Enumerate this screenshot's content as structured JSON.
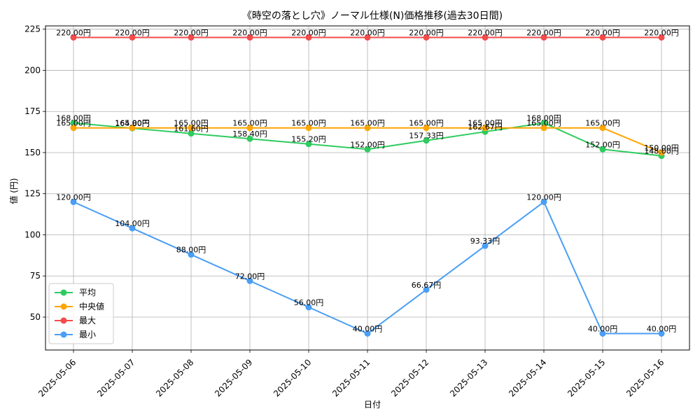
{
  "chart_data": {
    "type": "line",
    "title": "《時空の落とし穴》ノーマル仕様(N)価格推移(過去30日間)",
    "xlabel": "日付",
    "ylabel": "値 (円)",
    "categories": [
      "2025-05-06",
      "2025-05-07",
      "2025-05-08",
      "2025-05-09",
      "2025-05-10",
      "2025-05-11",
      "2025-05-12",
      "2025-05-13",
      "2025-05-14",
      "2025-05-15",
      "2025-05-16"
    ],
    "ylim": [
      30,
      227
    ],
    "yticks": [
      50,
      75,
      100,
      125,
      150,
      175,
      200,
      225
    ],
    "grid": true,
    "legend_position": "lower-left",
    "series": [
      {
        "name": "平均",
        "color": "#2ecc5f",
        "values": [
          168.0,
          164.8,
          161.6,
          158.4,
          155.2,
          152.0,
          157.33,
          162.67,
          168.0,
          152.0,
          148.0
        ],
        "labels": [
          "168.00円",
          "164.80円",
          "161.60円",
          "158.40円",
          "155.20円",
          "152.00円",
          "157.33円",
          "162.67円",
          "168.00円",
          "152.00円",
          "148.00円"
        ]
      },
      {
        "name": "中央値",
        "color": "#ffa500",
        "values": [
          165.0,
          165.0,
          165.0,
          165.0,
          165.0,
          165.0,
          165.0,
          165.0,
          165.0,
          165.0,
          150.0
        ],
        "labels": [
          "165.00円",
          "165.00円",
          "165.00円",
          "165.00円",
          "165.00円",
          "165.00円",
          "165.00円",
          "165.00円",
          "165.00円",
          "165.00円",
          "150.00円"
        ]
      },
      {
        "name": "最大",
        "color": "#f44b4b",
        "values": [
          220.0,
          220.0,
          220.0,
          220.0,
          220.0,
          220.0,
          220.0,
          220.0,
          220.0,
          220.0,
          220.0
        ],
        "labels": [
          "220.00円",
          "220.00円",
          "220.00円",
          "220.00円",
          "220.00円",
          "220.00円",
          "220.00円",
          "220.00円",
          "220.00円",
          "220.00円",
          "220.00円"
        ]
      },
      {
        "name": "最小",
        "color": "#4a9ef5",
        "values": [
          120.0,
          104.0,
          88.0,
          72.0,
          56.0,
          40.0,
          66.67,
          93.33,
          120.0,
          40.0,
          40.0
        ],
        "labels": [
          "120.00円",
          "104.00円",
          "88.00円",
          "72.00円",
          "56.00円",
          "40.00円",
          "66.67円",
          "93.33円",
          "120.00円",
          "40.00円",
          "40.00円"
        ]
      }
    ]
  }
}
